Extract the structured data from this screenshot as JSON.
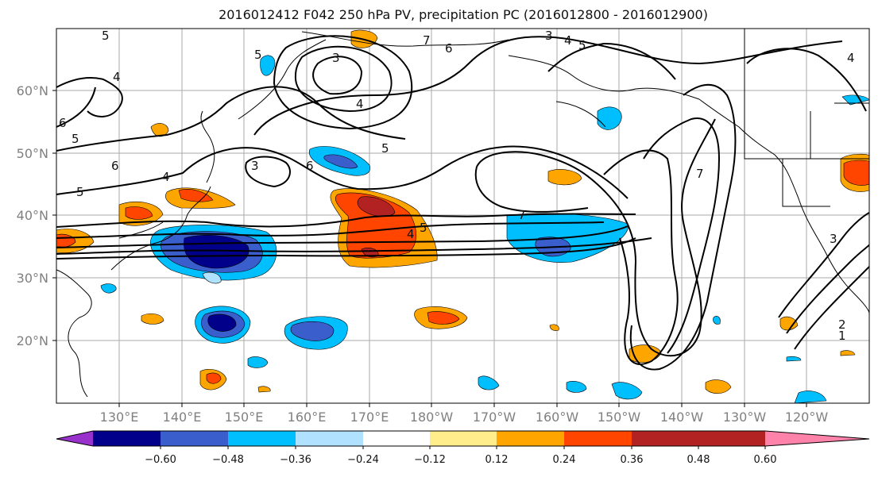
{
  "title": "2016012412 F042 250 hPa PV, precipitation PC (2016012800 - 2016012900)",
  "map": {
    "lat_ticks": [
      "60°N",
      "50°N",
      "40°N",
      "30°N",
      "20°N"
    ],
    "lon_ticks": [
      "130°E",
      "140°E",
      "150°E",
      "160°E",
      "170°E",
      "180°W",
      "170°W",
      "160°W",
      "150°W",
      "140°W",
      "130°W",
      "120°W"
    ],
    "contour_labels": [
      "5",
      "5",
      "6",
      "5",
      "5",
      "6",
      "4",
      "3",
      "3",
      "4",
      "3",
      "4",
      "5",
      "7",
      "6",
      "7",
      "5",
      "4",
      "7",
      "5",
      "4",
      "2",
      "1",
      "6",
      "3",
      "4"
    ]
  },
  "colorbar": {
    "ticks": [
      "−0.60",
      "−0.48",
      "−0.36",
      "−0.24",
      "−0.12",
      "0.12",
      "0.24",
      "0.36",
      "0.48",
      "0.60"
    ],
    "colors": [
      "#9932cc",
      "#00008b",
      "#3a5fcd",
      "#00bfff",
      "#b0e2ff",
      "#ffffff",
      "#ffec8b",
      "#ffa500",
      "#ff4500",
      "#b22222",
      "#ff82ab"
    ]
  }
}
